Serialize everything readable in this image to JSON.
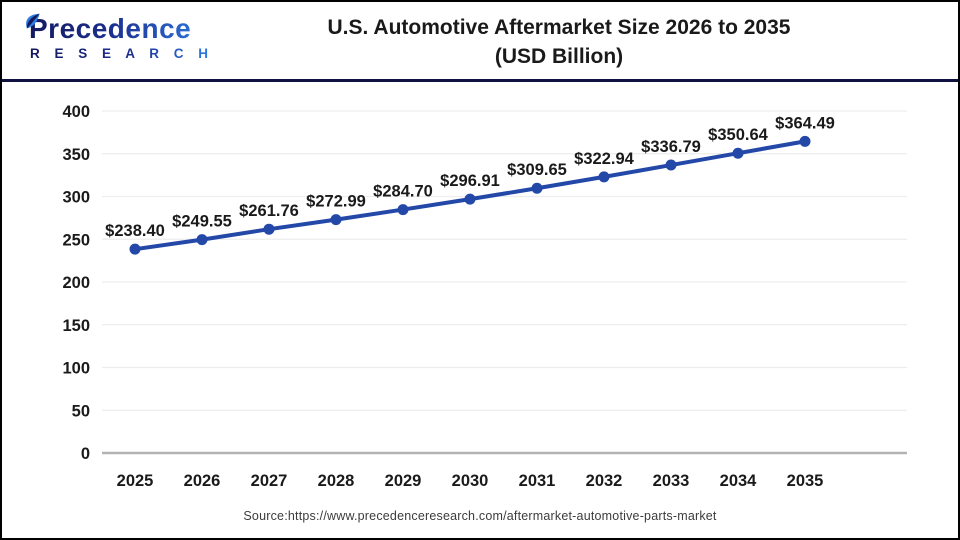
{
  "header": {
    "logo": {
      "line1": "Precedence",
      "line2": "R E S E A R C H"
    },
    "title_line1": "U.S. Automotive Aftermarket Size 2026 to 2035",
    "title_line2": "(USD Billion)"
  },
  "chart_data": {
    "type": "line",
    "title": "U.S. Automotive Aftermarket Size 2026 to 2035 (USD Billion)",
    "categories": [
      "2025",
      "2026",
      "2027",
      "2028",
      "2029",
      "2030",
      "2031",
      "2032",
      "2033",
      "2034",
      "2035"
    ],
    "values": [
      238.4,
      249.55,
      261.76,
      272.99,
      284.7,
      296.91,
      309.65,
      322.94,
      336.79,
      350.64,
      364.49
    ],
    "point_labels": [
      "$238.40",
      "$249.55",
      "$261.76",
      "$272.99",
      "$284.70",
      "$296.91",
      "$309.65",
      "$322.94",
      "$336.79",
      "$350.64",
      "$364.49"
    ],
    "xlabel": "",
    "ylabel": "",
    "ylim": [
      0,
      400
    ],
    "yticks": [
      0,
      50,
      100,
      150,
      200,
      250,
      300,
      350,
      400
    ],
    "grid": true,
    "legend": "none",
    "line_color": "#2348a8",
    "point_color": "#2348a8",
    "label_color": "#1a1a1a",
    "tick_color": "#1a1a1a",
    "gridline_color": "#ededed",
    "baseline_color": "#b3b3b3"
  },
  "source": {
    "text": "Source:https://www.precedenceresearch.com/aftermarket-automotive-parts-market"
  }
}
